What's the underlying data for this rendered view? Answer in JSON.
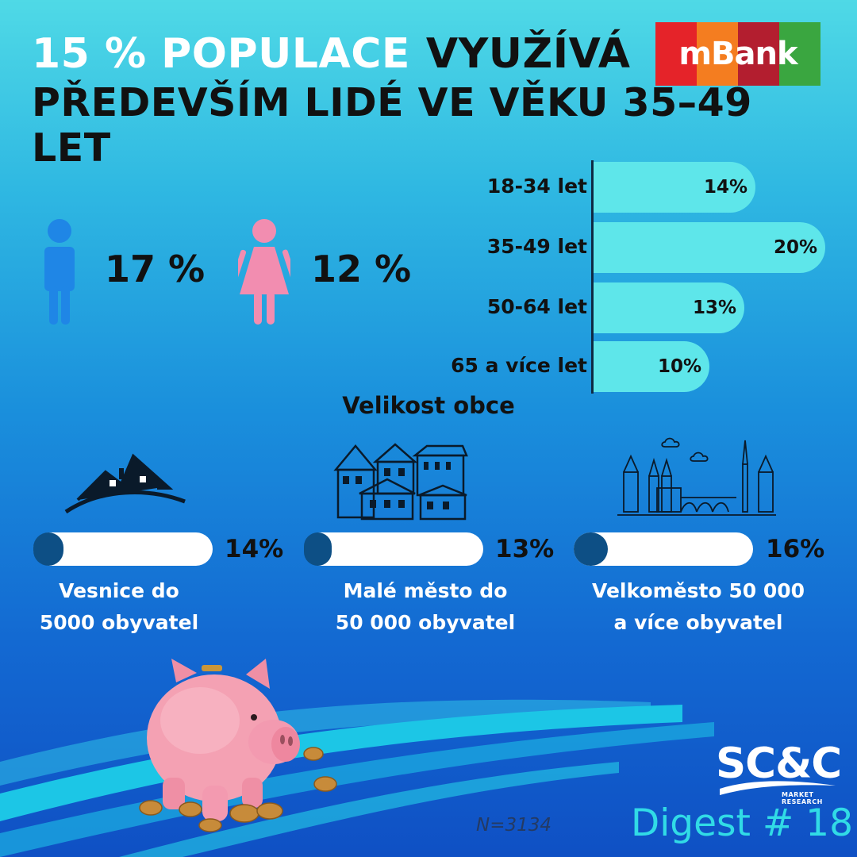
{
  "header": {
    "title_white": "15 % POPULACE",
    "title_black": "VYUŽÍVÁ",
    "subtitle": "PŘEDEVŠÍM LIDÉ VE VĚKU 35–49 LET",
    "brand_logo_text": "mBank",
    "brand_colors": [
      "#e52329",
      "#f47d20",
      "#b31e2f",
      "#3aa640"
    ]
  },
  "gender": {
    "male": {
      "icon": "male-person-icon",
      "value": "17 %",
      "color": "#1f86e6"
    },
    "female": {
      "icon": "female-person-icon",
      "value": "12 %",
      "color": "#f28db0"
    }
  },
  "settlement_heading": "Velikost obce",
  "settlements": [
    {
      "icon": "village-house-icon",
      "value_label": "14%",
      "value": 14,
      "label_line1": "Vesnice do",
      "label_line2": "5000 obyvatel"
    },
    {
      "icon": "small-town-icon",
      "value_label": "13%",
      "value": 13,
      "label_line1": "Malé město do",
      "label_line2": "50 000 obyvatel"
    },
    {
      "icon": "city-skyline-icon",
      "value_label": "16%",
      "value": 16,
      "label_line1": "Velkoměsto 50 000",
      "label_line2": "a více obyvatel"
    }
  ],
  "footer": {
    "sample": "N=3134",
    "company_logo": "SC&C",
    "company_sub": "MARKET RESEARCH",
    "digest": "Digest # 18"
  },
  "colors": {
    "age_bar": "#5ee6ea",
    "settlement_knob": "#0d4f85",
    "digest_text": "#31dbe6"
  },
  "chart_data": [
    {
      "type": "bar",
      "orientation": "horizontal",
      "categories": [
        "18-34 let",
        "35-49 let",
        "50-64 let",
        "65 a více let"
      ],
      "values": [
        14,
        20,
        13,
        10
      ],
      "value_labels": [
        "14%",
        "20%",
        "13%",
        "10%"
      ],
      "unit": "%",
      "xlim": [
        0,
        20
      ]
    }
  ]
}
